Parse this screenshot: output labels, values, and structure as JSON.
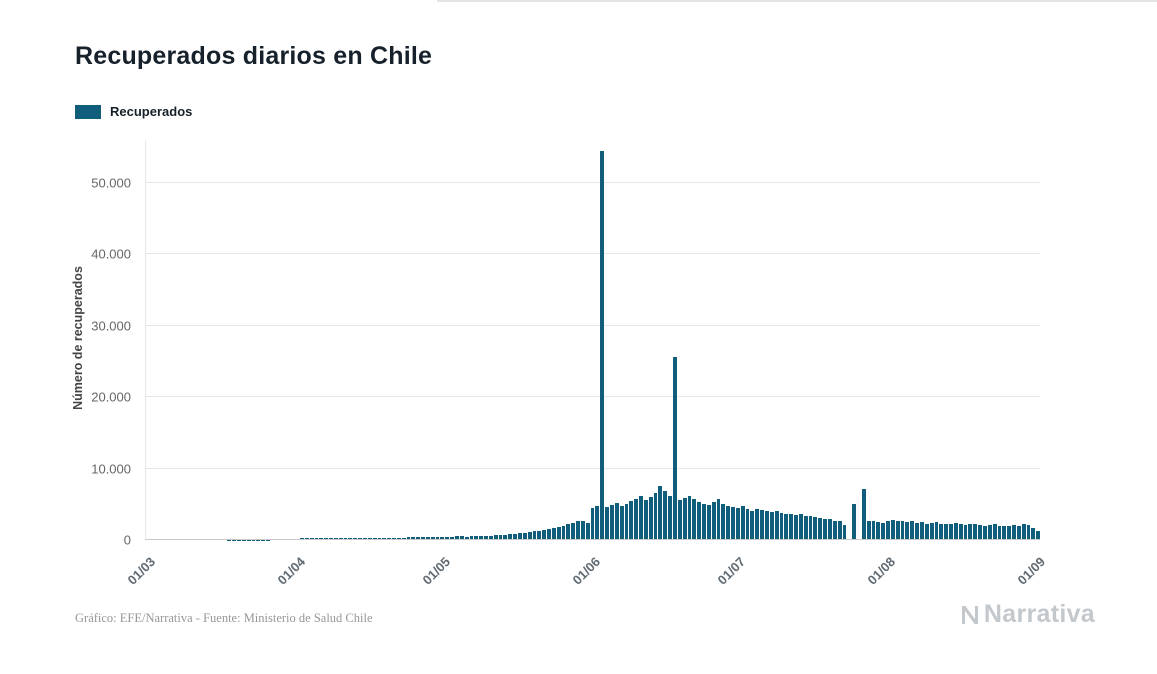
{
  "title": "Recuperados diarios en Chile",
  "legend": {
    "label": "Recuperados",
    "color": "#115d7c"
  },
  "footer": {
    "credit": "Gráfico: EFE/Narrativa - Fuente: Ministerio de Salud Chile",
    "logo_text": "Narrativa"
  },
  "chart_data": {
    "type": "bar",
    "title": "Recuperados diarios en Chile",
    "xlabel": "",
    "ylabel": "Número de recuperados",
    "ylim": [
      0,
      56000
    ],
    "grid": true,
    "legend_position": "top-left",
    "bar_color": "#115d7c",
    "y_ticks": [
      0,
      10000,
      20000,
      30000,
      40000,
      50000
    ],
    "y_tick_labels": [
      "0",
      "10.000",
      "20.000",
      "30.000",
      "40.000",
      "50.000"
    ],
    "x_tick_labels": [
      "01/03",
      "01/04",
      "01/05",
      "01/06",
      "01/07",
      "01/08",
      "01/09"
    ],
    "x_tick_positions": [
      0,
      31,
      61,
      92,
      122,
      153,
      184
    ],
    "x_start": "01/03",
    "x_end": "01/09",
    "frequency": "daily",
    "series": [
      {
        "name": "Recuperados",
        "values": [
          0,
          0,
          0,
          0,
          0,
          0,
          0,
          0,
          0,
          0,
          0,
          0,
          0,
          0,
          6,
          8,
          10,
          12,
          15,
          20,
          25,
          30,
          35,
          40,
          50,
          60,
          75,
          90,
          110,
          130,
          150,
          180,
          220,
          260,
          310,
          280,
          240,
          220,
          250,
          270,
          260,
          280,
          300,
          290,
          270,
          260,
          280,
          300,
          320,
          340,
          330,
          310,
          330,
          350,
          370,
          390,
          380,
          360,
          390,
          410,
          430,
          450,
          480,
          460,
          500,
          530,
          490,
          520,
          560,
          600,
          570,
          610,
          650,
          700,
          760,
          820,
          880,
          940,
          1000,
          1100,
          1200,
          1300,
          1400,
          1500,
          1650,
          1800,
          2000,
          2200,
          2400,
          2600,
          2700,
          2400,
          4500,
          4800,
          54464,
          4600,
          4900,
          5200,
          4800,
          5000,
          5400,
          5800,
          6200,
          5600,
          6000,
          6600,
          7500,
          6800,
          6200,
          25580,
          5600,
          5900,
          6100,
          5700,
          5300,
          5100,
          4900,
          5300,
          5700,
          5100,
          4800,
          4600,
          4500,
          4700,
          4300,
          4100,
          4400,
          4200,
          4000,
          3900,
          4100,
          3800,
          3700,
          3600,
          3500,
          3700,
          3400,
          3300,
          3200,
          3100,
          3000,
          2900,
          2700,
          2600,
          2100,
          0,
          5000,
          0,
          7100,
          2700,
          2600,
          2500,
          2400,
          2700,
          2800,
          2600,
          2700,
          2500,
          2600,
          2400,
          2500,
          2300,
          2400,
          2500,
          2300,
          2200,
          2300,
          2400,
          2200,
          2100,
          2200,
          2300,
          2100,
          2000,
          2100,
          2200,
          2000,
          1900,
          2000,
          2100,
          1900,
          2300,
          2100,
          1700,
          1300
        ]
      }
    ]
  }
}
